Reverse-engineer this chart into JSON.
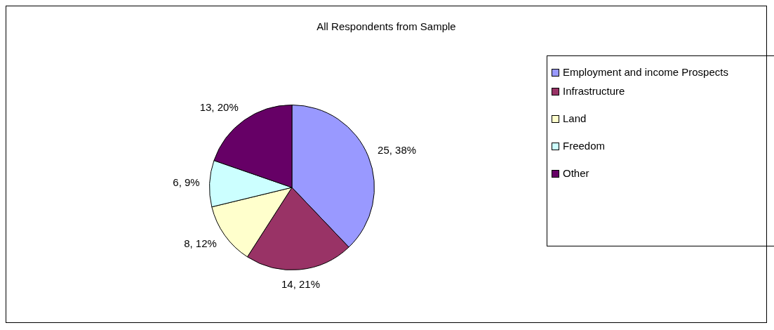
{
  "chart_data": {
    "type": "pie",
    "title": "All Respondents from Sample",
    "categories": [
      "Employment and income Prospects",
      "Infrastructure",
      "Land",
      "Freedom",
      "Other"
    ],
    "values": [
      25,
      14,
      8,
      6,
      13
    ],
    "colors": [
      "#9999ff",
      "#993366",
      "#ffffcc",
      "#ccffff",
      "#660066"
    ],
    "value_labels": [
      "25, 38%",
      "14, 21%",
      "8, 12%",
      "6, 9%",
      "13, 20%"
    ],
    "legend": "right"
  }
}
